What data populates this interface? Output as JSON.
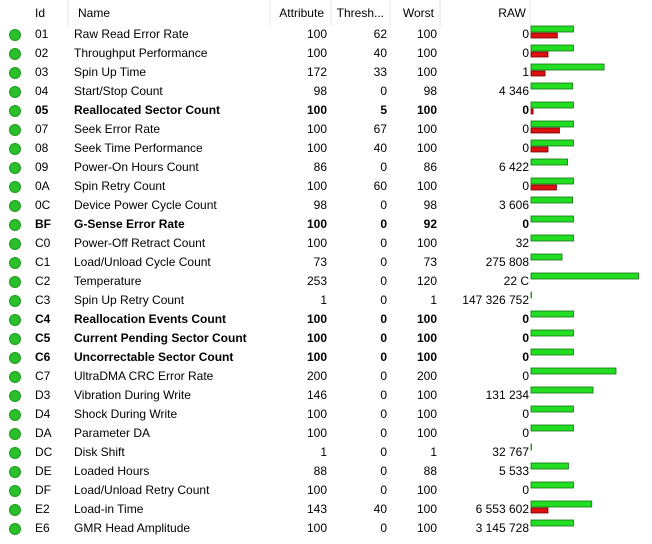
{
  "table": {
    "columns": [
      "Id",
      "Name",
      "Attribute",
      "Thresh...",
      "Worst",
      "RAW"
    ],
    "rows": [
      {
        "id": "01",
        "name": "Raw Read Error Rate",
        "attribute": 100,
        "threshold": 62,
        "worst": 100,
        "raw": "0",
        "bold": false
      },
      {
        "id": "02",
        "name": "Throughput Performance",
        "attribute": 100,
        "threshold": 40,
        "worst": 100,
        "raw": "0",
        "bold": false
      },
      {
        "id": "03",
        "name": "Spin Up Time",
        "attribute": 172,
        "threshold": 33,
        "worst": 100,
        "raw": "1",
        "bold": false
      },
      {
        "id": "04",
        "name": "Start/Stop Count",
        "attribute": 98,
        "threshold": 0,
        "worst": 98,
        "raw": "4 346",
        "bold": false
      },
      {
        "id": "05",
        "name": "Reallocated Sector Count",
        "attribute": 100,
        "threshold": 5,
        "worst": 100,
        "raw": "0",
        "bold": true
      },
      {
        "id": "07",
        "name": "Seek Error Rate",
        "attribute": 100,
        "threshold": 67,
        "worst": 100,
        "raw": "0",
        "bold": false
      },
      {
        "id": "08",
        "name": "Seek Time Performance",
        "attribute": 100,
        "threshold": 40,
        "worst": 100,
        "raw": "0",
        "bold": false
      },
      {
        "id": "09",
        "name": "Power-On Hours Count",
        "attribute": 86,
        "threshold": 0,
        "worst": 86,
        "raw": "6 422",
        "bold": false
      },
      {
        "id": "0A",
        "name": "Spin Retry Count",
        "attribute": 100,
        "threshold": 60,
        "worst": 100,
        "raw": "0",
        "bold": false
      },
      {
        "id": "0C",
        "name": "Device Power Cycle Count",
        "attribute": 98,
        "threshold": 0,
        "worst": 98,
        "raw": "3 606",
        "bold": false
      },
      {
        "id": "BF",
        "name": "G-Sense Error Rate",
        "attribute": 100,
        "threshold": 0,
        "worst": 92,
        "raw": "0",
        "bold": true
      },
      {
        "id": "C0",
        "name": "Power-Off Retract Count",
        "attribute": 100,
        "threshold": 0,
        "worst": 100,
        "raw": "32",
        "bold": false
      },
      {
        "id": "C1",
        "name": "Load/Unload Cycle Count",
        "attribute": 73,
        "threshold": 0,
        "worst": 73,
        "raw": "275 808",
        "bold": false
      },
      {
        "id": "C2",
        "name": "Temperature",
        "attribute": 253,
        "threshold": 0,
        "worst": 120,
        "raw": "22 C",
        "bold": false
      },
      {
        "id": "C3",
        "name": "Spin Up Retry Count",
        "attribute": 1,
        "threshold": 0,
        "worst": 1,
        "raw": "147 326 752",
        "bold": false
      },
      {
        "id": "C4",
        "name": "Reallocation Events Count",
        "attribute": 100,
        "threshold": 0,
        "worst": 100,
        "raw": "0",
        "bold": true
      },
      {
        "id": "C5",
        "name": "Current Pending Sector Count",
        "attribute": 100,
        "threshold": 0,
        "worst": 100,
        "raw": "0",
        "bold": true
      },
      {
        "id": "C6",
        "name": "Uncorrectable Sector Count",
        "attribute": 100,
        "threshold": 0,
        "worst": 100,
        "raw": "0",
        "bold": true
      },
      {
        "id": "C7",
        "name": "UltraDMA CRC Error Rate",
        "attribute": 200,
        "threshold": 0,
        "worst": 200,
        "raw": "0",
        "bold": false
      },
      {
        "id": "D3",
        "name": "Vibration During Write",
        "attribute": 146,
        "threshold": 0,
        "worst": 100,
        "raw": "131 234",
        "bold": false
      },
      {
        "id": "D4",
        "name": "Shock During Write",
        "attribute": 100,
        "threshold": 0,
        "worst": 100,
        "raw": "0",
        "bold": false
      },
      {
        "id": "DA",
        "name": "Parameter DA",
        "attribute": 100,
        "threshold": 0,
        "worst": 100,
        "raw": "0",
        "bold": false
      },
      {
        "id": "DC",
        "name": "Disk Shift",
        "attribute": 1,
        "threshold": 0,
        "worst": 1,
        "raw": "32 767",
        "bold": false
      },
      {
        "id": "DE",
        "name": "Loaded Hours",
        "attribute": 88,
        "threshold": 0,
        "worst": 88,
        "raw": "5 533",
        "bold": false
      },
      {
        "id": "DF",
        "name": "Load/Unload Retry Count",
        "attribute": 100,
        "threshold": 0,
        "worst": 100,
        "raw": "0",
        "bold": false
      },
      {
        "id": "E2",
        "name": "Load-in Time",
        "attribute": 143,
        "threshold": 40,
        "worst": 100,
        "raw": "6 553 602",
        "bold": false
      },
      {
        "id": "E6",
        "name": "GMR Head Amplitude",
        "attribute": 100,
        "threshold": 0,
        "worst": 100,
        "raw": "3 145 728",
        "bold": false
      }
    ]
  }
}
